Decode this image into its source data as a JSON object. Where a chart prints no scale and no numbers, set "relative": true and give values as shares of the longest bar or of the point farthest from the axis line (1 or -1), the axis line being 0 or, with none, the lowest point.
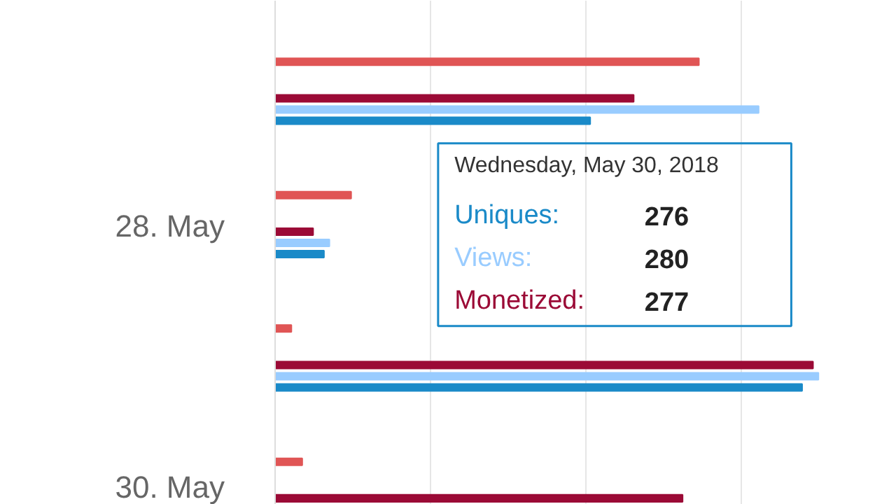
{
  "chart_data": {
    "type": "bar",
    "orientation": "horizontal",
    "relative": true,
    "grid": "x",
    "categories": [
      null,
      "28. May",
      null,
      "30. May"
    ],
    "series": [
      {
        "color": "#e05555",
        "values": [
          0.78,
          0.14,
          0.03,
          0.05
        ]
      },
      {
        "name": "Monetized:",
        "color": "#9b0a36",
        "values": [
          0.66,
          0.07,
          0.99,
          0.75
        ]
      },
      {
        "name": "Views:",
        "color": "#99ccff",
        "values": [
          0.89,
          0.1,
          1,
          null
        ]
      },
      {
        "name": "Uniques:",
        "color": "#1a8ac8",
        "values": [
          0.58,
          0.09,
          0.97,
          null
        ]
      }
    ],
    "annotations": [
      "Wednesday, May 30, 2018",
      "276",
      "280",
      "277"
    ]
  }
}
